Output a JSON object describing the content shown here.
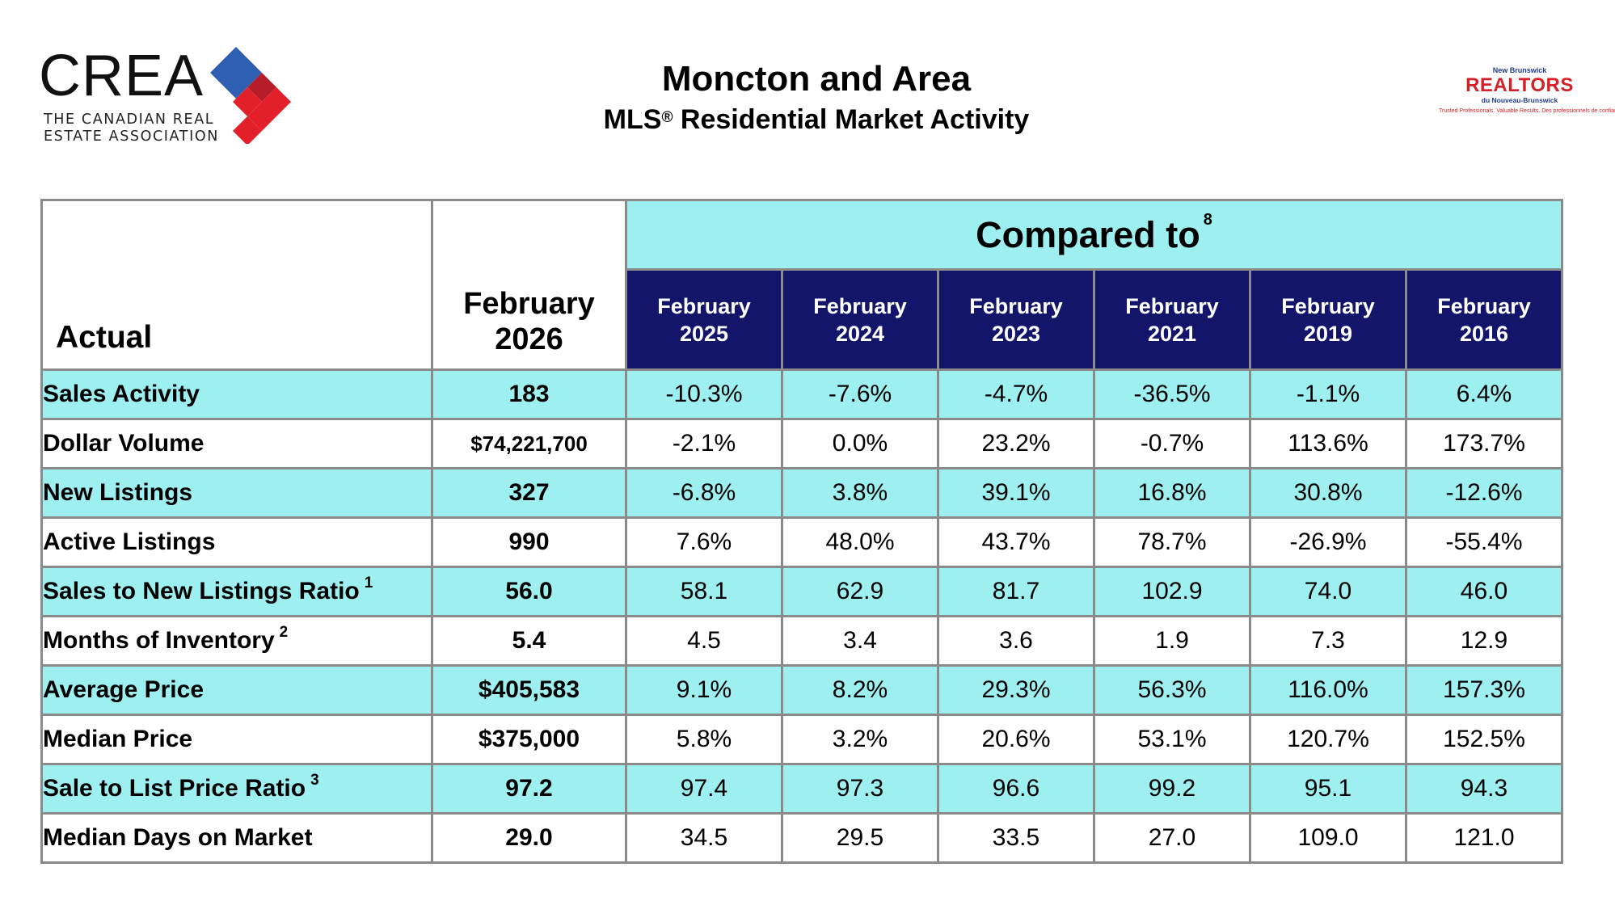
{
  "header": {
    "crea_logo": {
      "wordmark": "CREA",
      "tagline": "THE CANADIAN REAL\nESTATE ASSOCIATION",
      "colors": {
        "blue": "#2f5fb3",
        "red": "#e3202a",
        "dark_red": "#b71c2b"
      }
    },
    "title": "Moncton and Area",
    "subtitle": "MLS",
    "subtitle_mark": "®",
    "subtitle_rest": " Residential Market Activity",
    "nb_realtors_logo": {
      "top": "New Brunswick",
      "name": "REALTORS",
      "sub": "du Nouveau-Brunswick",
      "tagline": "Trusted Professionals. Valuable Results. Des professionnels de confiance. Des résultats fiables."
    }
  },
  "table": {
    "label_header": "Actual",
    "current_header": [
      "February",
      "2026"
    ],
    "compared_to": "Compared to",
    "compared_to_note": "8",
    "periods": [
      {
        "month": "February",
        "year": "2025"
      },
      {
        "month": "February",
        "year": "2024"
      },
      {
        "month": "February",
        "year": "2023"
      },
      {
        "month": "February",
        "year": "2021"
      },
      {
        "month": "February",
        "year": "2019"
      },
      {
        "month": "February",
        "year": "2016"
      }
    ],
    "rows": [
      {
        "label": "Sales Activity",
        "note": "",
        "current": "183",
        "values": [
          "-10.3%",
          "-7.6%",
          "-4.7%",
          "-36.5%",
          "-1.1%",
          "6.4%"
        ]
      },
      {
        "label": "Dollar Volume",
        "note": "",
        "current": "$74,221,700",
        "values": [
          "-2.1%",
          "0.0%",
          "23.2%",
          "-0.7%",
          "113.6%",
          "173.7%"
        ]
      },
      {
        "label": "New Listings",
        "note": "",
        "current": "327",
        "values": [
          "-6.8%",
          "3.8%",
          "39.1%",
          "16.8%",
          "30.8%",
          "-12.6%"
        ]
      },
      {
        "label": "Active Listings",
        "note": "",
        "current": "990",
        "values": [
          "7.6%",
          "48.0%",
          "43.7%",
          "78.7%",
          "-26.9%",
          "-55.4%"
        ]
      },
      {
        "label": "Sales to New Listings Ratio",
        "note": "1",
        "current": "56.0",
        "values": [
          "58.1",
          "62.9",
          "81.7",
          "102.9",
          "74.0",
          "46.0"
        ]
      },
      {
        "label": "Months of Inventory",
        "note": "2",
        "current": "5.4",
        "values": [
          "4.5",
          "3.4",
          "3.6",
          "1.9",
          "7.3",
          "12.9"
        ]
      },
      {
        "label": "Average Price",
        "note": "",
        "current": "$405,583",
        "values": [
          "9.1%",
          "8.2%",
          "29.3%",
          "56.3%",
          "116.0%",
          "157.3%"
        ]
      },
      {
        "label": "Median Price",
        "note": "",
        "current": "$375,000",
        "values": [
          "5.8%",
          "3.2%",
          "20.6%",
          "53.1%",
          "120.7%",
          "152.5%"
        ]
      },
      {
        "label": "Sale to List Price Ratio",
        "note": "3",
        "current": "97.2",
        "values": [
          "97.4",
          "97.3",
          "96.6",
          "99.2",
          "95.1",
          "94.3"
        ]
      },
      {
        "label": "Median Days on Market",
        "note": "",
        "current": "29.0",
        "values": [
          "34.5",
          "29.5",
          "33.5",
          "27.0",
          "109.0",
          "121.0"
        ]
      }
    ],
    "colors": {
      "cyan": "#9deff0",
      "navy": "#13156a",
      "border": "#8a8a8a"
    }
  }
}
